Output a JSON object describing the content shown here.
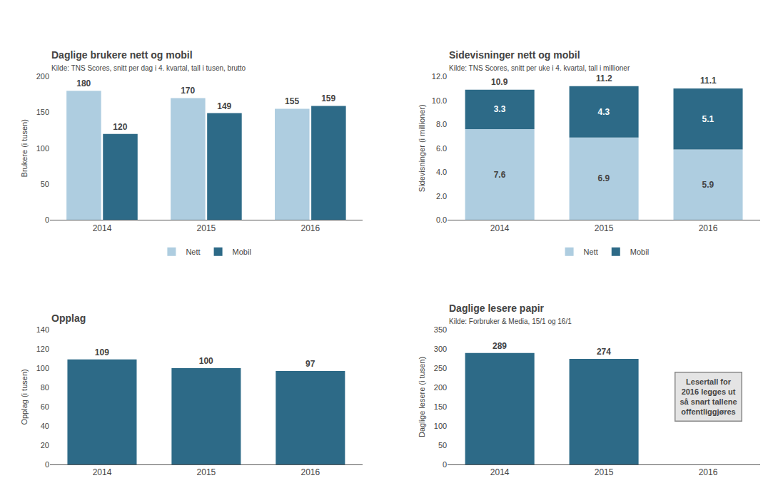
{
  "chart_data": [
    {
      "type": "bar",
      "title": "Daglige brukere nett og mobil",
      "subtitle": "Kilde: TNS Scores, snitt per dag i 4. kvartal, tall i tusen, brutto",
      "categories": [
        "2014",
        "2015",
        "2016"
      ],
      "series": [
        {
          "name": "Nett",
          "color": "#aecde0",
          "values": [
            180,
            170,
            155
          ]
        },
        {
          "name": "Mobil",
          "color": "#2d6a87",
          "values": [
            120,
            149,
            159
          ]
        }
      ],
      "ylabel": "Brukere (i tusen)",
      "ylim": [
        0,
        200
      ],
      "yticks": [
        0,
        50,
        100,
        150,
        200
      ],
      "data_labels": true,
      "legend": "bottom",
      "grid": false
    },
    {
      "type": "bar",
      "title": "Sidevisninger nett og mobil",
      "subtitle": "Kilde: TNS Scores, snitt per uke i 4. kvartal, tall i millioner",
      "categories": [
        "2014",
        "2015",
        "2016"
      ],
      "series": [
        {
          "name": "Nett",
          "color": "#aecde0",
          "values": [
            7.6,
            6.9,
            5.9
          ]
        },
        {
          "name": "Mobil",
          "color": "#2d6a87",
          "values": [
            3.3,
            4.3,
            5.1
          ]
        }
      ],
      "totals": [
        10.9,
        11.2,
        11.1
      ],
      "stacked": true,
      "ylabel": "Sidevisninger (i millioner)",
      "ylim": [
        0,
        12.0
      ],
      "yticks": [
        {
          "value": 0,
          "label": "0.0"
        },
        {
          "value": 2,
          "label": "2.0"
        },
        {
          "value": 4,
          "label": "4.0"
        },
        {
          "value": 6,
          "label": "6.0"
        },
        {
          "value": 8,
          "label": "8.0"
        },
        {
          "value": 10,
          "label": "10.0"
        },
        {
          "value": 12,
          "label": "12.0"
        }
      ],
      "data_labels": true,
      "legend": "bottom",
      "grid": false
    },
    {
      "type": "bar",
      "title": "Opplag",
      "categories": [
        "2014",
        "2015",
        "2016"
      ],
      "values": [
        109,
        100,
        97
      ],
      "color": "#2d6a87",
      "ylabel": "Opplag (i tusen)",
      "ylim": [
        0,
        140
      ],
      "yticks": [
        0,
        20,
        40,
        60,
        80,
        100,
        120,
        140
      ],
      "data_labels": true,
      "grid": false
    },
    {
      "type": "bar",
      "title": "Daglige lesere papir",
      "subtitle": "Kilde: Forbruker & Media, 15/1 og 16/1",
      "categories": [
        "2014",
        "2015",
        "2016"
      ],
      "values": [
        289,
        274,
        null
      ],
      "color": "#2d6a87",
      "ylabel": "Daglige lesere (i tusen)",
      "ylim": [
        0,
        350
      ],
      "yticks": [
        0,
        50,
        100,
        150,
        200,
        250,
        300,
        350
      ],
      "annotation": "Lesertall for\n2016 legges ut\nså snart tallene\noffentliggjøres",
      "data_labels": true,
      "grid": false
    }
  ]
}
